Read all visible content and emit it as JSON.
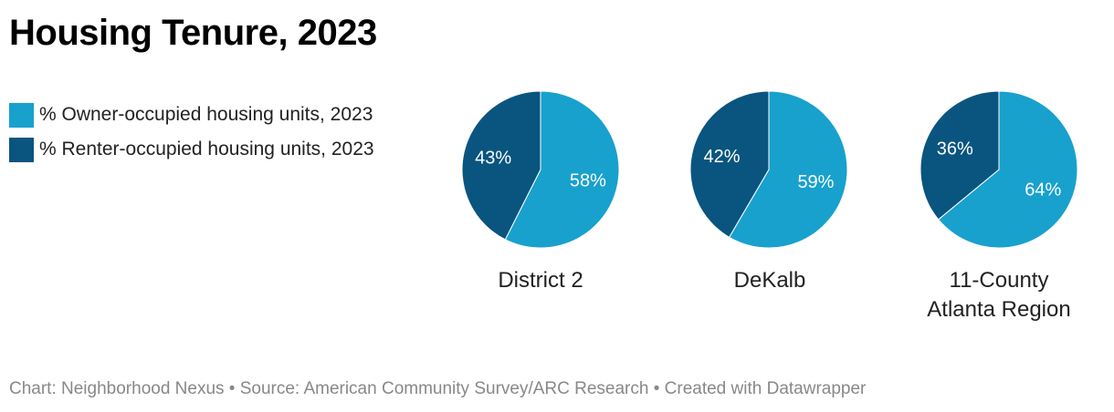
{
  "title": "Housing Tenure, 2023",
  "legend": [
    {
      "label": "% Owner-occupied housing units, 2023",
      "color": "#18a1cd"
    },
    {
      "label": "% Renter-occupied housing units, 2023",
      "color": "#09557f"
    }
  ],
  "chart_data": {
    "type": "pie",
    "title": "Housing Tenure, 2023",
    "series_names": [
      "% Owner-occupied housing units, 2023",
      "% Renter-occupied housing units, 2023"
    ],
    "pies": [
      {
        "name": "District 2",
        "owner": 58,
        "renter": 43,
        "owner_label": "58%",
        "renter_label": "43%"
      },
      {
        "name": "DeKalb",
        "owner": 59,
        "renter": 42,
        "owner_label": "59%",
        "renter_label": "42%"
      },
      {
        "name": "11-County Atlanta Region",
        "owner": 64,
        "renter": 36,
        "owner_label": "64%",
        "renter_label": "36%"
      }
    ]
  },
  "labels": {
    "pie1": "District 2",
    "pie2": "DeKalb",
    "pie3_line1": "11-County",
    "pie3_line2": "Atlanta Region"
  },
  "footer": "Chart: Neighborhood Nexus • Source: American Community Survey/ARC Research • Created with Datawrapper"
}
